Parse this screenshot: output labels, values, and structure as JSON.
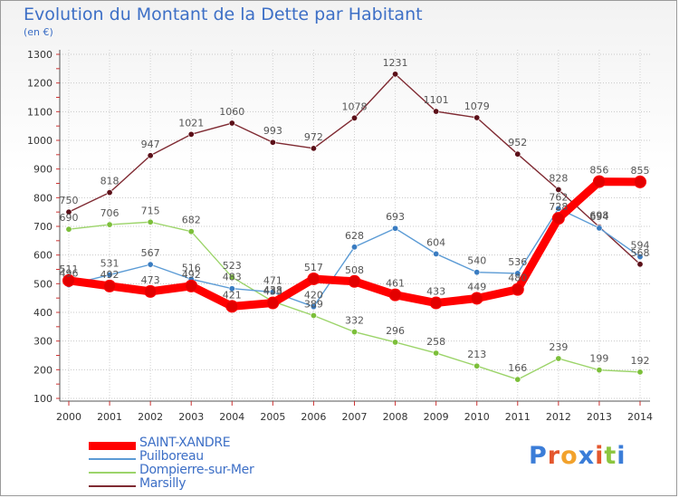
{
  "title": "Evolution du Montant de la Dette par Habitant",
  "unit_label": "(en €)",
  "brand": {
    "letters": [
      "P",
      "r",
      "o",
      "x",
      "i",
      "t",
      "i"
    ],
    "colors": [
      "#3b7dd8",
      "#e4572e",
      "#f2a22c",
      "#3b7dd8",
      "#e4572e",
      "#8cc63f",
      "#3b7dd8"
    ]
  },
  "chart_data": {
    "type": "line",
    "x": [
      "2000",
      "2001",
      "2002",
      "2003",
      "2004",
      "2005",
      "2006",
      "2007",
      "2008",
      "2009",
      "2010",
      "2011",
      "2012",
      "2013",
      "2014"
    ],
    "ylim": [
      100,
      1300
    ],
    "yticks": [
      "100",
      "200",
      "300",
      "400",
      "500",
      "600",
      "700",
      "800",
      "900",
      "1000",
      "1100",
      "1200",
      "1300"
    ],
    "grid": true,
    "legend_position": "bottom-left",
    "series": [
      {
        "name": "Marsilly",
        "color": "#7f2a32",
        "point_color": "#5b0f18",
        "values": [
          750,
          818,
          947,
          1021,
          1060,
          993,
          972,
          1078,
          1231,
          1101,
          1079,
          952,
          828,
          698,
          568
        ],
        "labels": [
          "750",
          "818",
          "947",
          "1021",
          "1060",
          "993",
          "972",
          "1078",
          "1231",
          "1101",
          "1079",
          "952",
          "828",
          "698",
          "568"
        ]
      },
      {
        "name": "Dompierre-sur-Mer",
        "color": "#9cd46a",
        "point_color": "#7cbf3a",
        "values": [
          690,
          706,
          715,
          682,
          523,
          438,
          389,
          332,
          296,
          258,
          213,
          166,
          239,
          199,
          192
        ],
        "labels": [
          "690",
          "706",
          "715",
          "682",
          "523",
          "438",
          "389",
          "332",
          "296",
          "258",
          "213",
          "166",
          "239",
          "199",
          "192"
        ]
      },
      {
        "name": "Puilboreau",
        "color": "#5b9bd5",
        "point_color": "#3a7cc1",
        "values": [
          496,
          531,
          567,
          516,
          483,
          471,
          420,
          628,
          693,
          604,
          540,
          536,
          762,
          694,
          594
        ],
        "labels": [
          "496",
          "531",
          "567",
          "516",
          "483",
          "471",
          "420",
          "628",
          "693",
          "604",
          "540",
          "536",
          "762",
          "694",
          "594"
        ]
      },
      {
        "name": "SAINT-XANDRE",
        "color": "#ff0000",
        "point_color": "#e30000",
        "values": [
          511,
          492,
          473,
          492,
          421,
          433,
          517,
          508,
          461,
          433,
          449,
          480,
          728,
          856,
          855
        ],
        "labels": [
          "511",
          "492",
          "473",
          "492",
          "421",
          "433",
          "517",
          "508",
          "461",
          "433",
          "449",
          "480",
          "728",
          "856",
          "855"
        ]
      }
    ],
    "legend": [
      {
        "name": "SAINT-XANDRE",
        "color": "#ff0000",
        "thickness": 9
      },
      {
        "name": "Puilboreau",
        "color": "#5b9bd5",
        "thickness": 2
      },
      {
        "name": "Dompierre-sur-Mer",
        "color": "#9cd46a",
        "thickness": 2
      },
      {
        "name": "Marsilly",
        "color": "#7f2a32",
        "thickness": 2
      }
    ]
  }
}
